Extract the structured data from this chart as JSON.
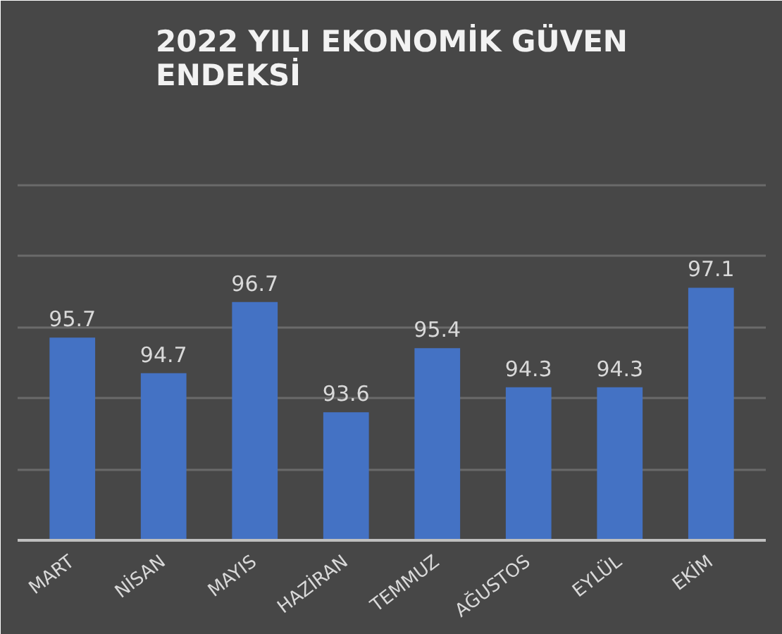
{
  "chart_data": {
    "type": "bar",
    "title": "2022 YILI EKONOMİK GÜVEN ENDEKSİ",
    "categories": [
      "MART",
      "NİSAN",
      "MAYIS",
      "HAZİRAN",
      "TEMMUZ",
      "AĞUSTOS",
      "EYLÜL",
      "EKİM"
    ],
    "values": [
      95.7,
      94.7,
      96.7,
      93.6,
      95.4,
      94.3,
      94.3,
      97.1
    ],
    "color": "#4472c4",
    "ylim": [
      90,
      102
    ],
    "yticks": [
      {
        "value": 90,
        "label": null
      },
      {
        "value": 92,
        "label": null
      },
      {
        "value": 94,
        "label": null
      },
      {
        "value": 96,
        "label": null
      },
      {
        "value": 98,
        "label": null
      },
      {
        "value": 100,
        "label": null
      },
      {
        "value": 102,
        "label": null
      }
    ],
    "grid": "y",
    "tick_labels": "x",
    "data_labels": true
  }
}
